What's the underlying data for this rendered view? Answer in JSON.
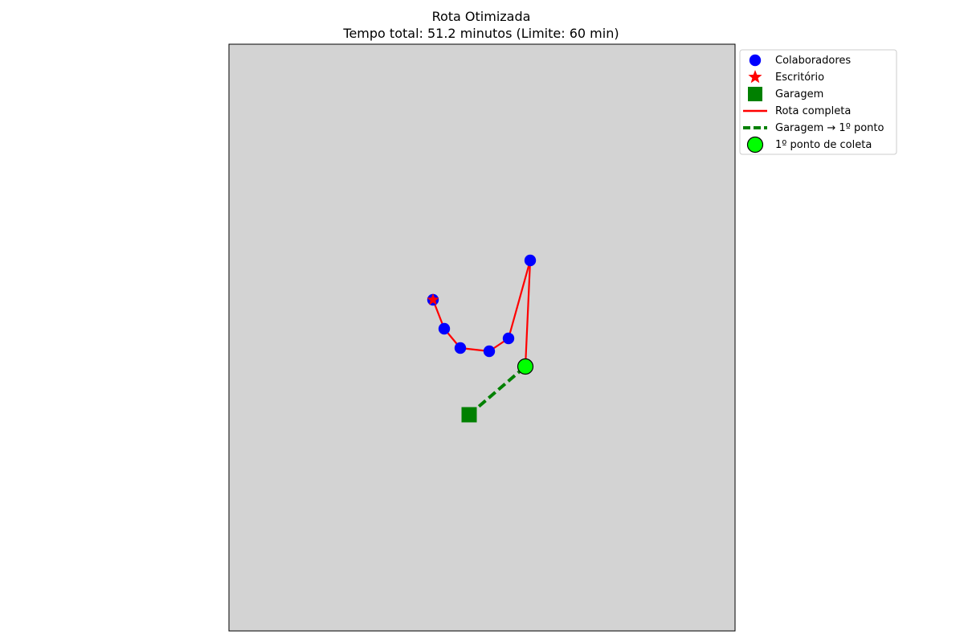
{
  "chart_data": {
    "type": "scatter",
    "title": "Rota Otimizada",
    "subtitle": "Tempo total: 51.2 minutos (Limite: 60 min)",
    "xlabel": "",
    "ylabel": "",
    "xlim": [
      0,
      630
    ],
    "ylim": [
      0,
      730
    ],
    "grid": false,
    "axes_visible": false,
    "background_color": "#d3d3d3",
    "legend_position": "outside-top-right",
    "series": [
      {
        "name": "Colaboradores",
        "kind": "points",
        "color": "#0000ff",
        "x": [
          254,
          268,
          288,
          324,
          348,
          375,
          369
        ],
        "y": [
          412,
          376,
          352,
          348,
          364,
          461,
          329
        ]
      },
      {
        "name": "Escritório",
        "kind": "star",
        "color": "#ff0000",
        "x": [
          254
        ],
        "y": [
          412
        ]
      },
      {
        "name": "Garagem",
        "kind": "square",
        "color": "#008000",
        "x": [
          299
        ],
        "y": [
          269
        ]
      },
      {
        "name": "Rota completa",
        "kind": "line",
        "color": "#ff0000",
        "x": [
          369,
          375,
          348,
          324,
          288,
          268,
          254
        ],
        "y": [
          329,
          461,
          364,
          348,
          352,
          376,
          412
        ]
      },
      {
        "name": "Garagem → 1º ponto",
        "kind": "dashed-line",
        "color": "#008000",
        "x": [
          299,
          369
        ],
        "y": [
          269,
          329
        ]
      },
      {
        "name": "1º ponto de coleta",
        "kind": "big-point",
        "color": "#00ff00",
        "edge_color": "#000000",
        "x": [
          369
        ],
        "y": [
          329
        ]
      }
    ]
  }
}
